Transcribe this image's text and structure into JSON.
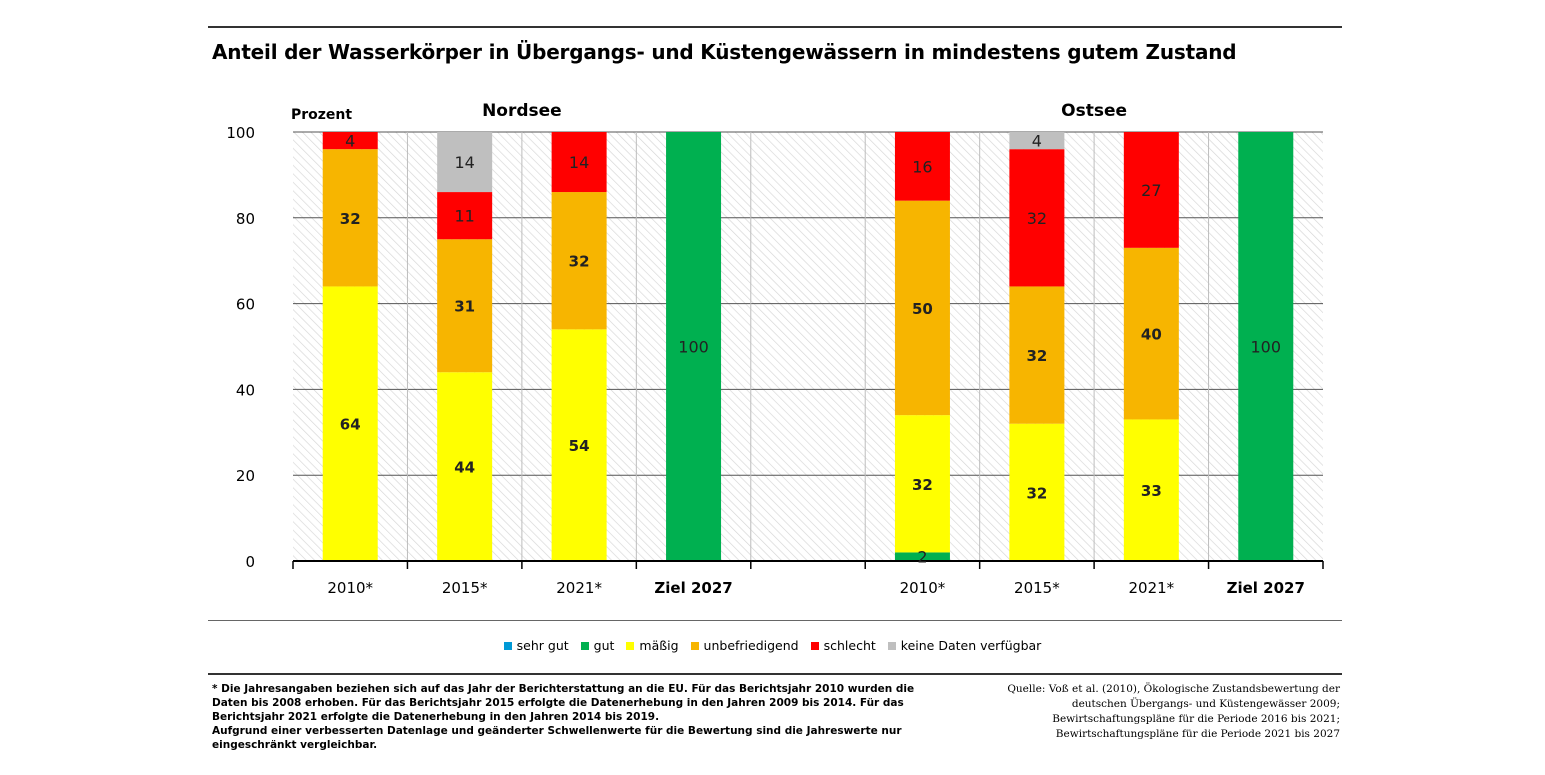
{
  "title": "Anteil der Wasserkörper in Übergangs- und Küstengewässern in mindestens gutem Zustand",
  "chart_data": {
    "type": "bar",
    "stacked": true,
    "ylabel": "Prozent",
    "ylim": [
      0,
      100
    ],
    "yticks": [
      0,
      20,
      40,
      60,
      80,
      100
    ],
    "grid": true,
    "legend_position": "bottom",
    "groups": [
      {
        "name": "Nordsee",
        "categories": [
          "2010*",
          "2015*",
          "2021*",
          "Ziel 2027"
        ],
        "series": [
          {
            "name": "sehr gut",
            "values": [
              0,
              0,
              0,
              0
            ]
          },
          {
            "name": "gut",
            "values": [
              0,
              0,
              0,
              100
            ]
          },
          {
            "name": "mäßig",
            "values": [
              64,
              44,
              54,
              0
            ]
          },
          {
            "name": "unbefriedigend",
            "values": [
              32,
              31,
              32,
              0
            ]
          },
          {
            "name": "schlecht",
            "values": [
              4,
              11,
              14,
              0
            ]
          },
          {
            "name": "keine Daten verfügbar",
            "values": [
              0,
              14,
              0,
              0
            ]
          }
        ]
      },
      {
        "name": "Ostsee",
        "categories": [
          "2010*",
          "2015*",
          "2021*",
          "Ziel 2027"
        ],
        "series": [
          {
            "name": "sehr gut",
            "values": [
              0,
              0,
              0,
              0
            ]
          },
          {
            "name": "gut",
            "values": [
              2,
              0,
              0,
              100
            ]
          },
          {
            "name": "mäßig",
            "values": [
              32,
              32,
              33,
              0
            ]
          },
          {
            "name": "unbefriedigend",
            "values": [
              50,
              32,
              40,
              0
            ]
          },
          {
            "name": "schlecht",
            "values": [
              16,
              32,
              27,
              0
            ]
          },
          {
            "name": "keine Daten verfügbar",
            "values": [
              0,
              4,
              0,
              0
            ]
          }
        ]
      }
    ],
    "colors": {
      "sehr gut": "#0099d6",
      "gut": "#00b050",
      "mäßig": "#ffff00",
      "unbefriedigend": "#f7b500",
      "schlecht": "#ff0000",
      "keine Daten verfügbar": "#bfbfbf"
    },
    "bold_label_series": [
      "mäßig",
      "unbefriedigend"
    ]
  },
  "legend": [
    {
      "label": "sehr gut",
      "color": "#0099d6"
    },
    {
      "label": "gut",
      "color": "#00b050"
    },
    {
      "label": "mäßig",
      "color": "#ffff00"
    },
    {
      "label": "unbefriedigend",
      "color": "#f7b500"
    },
    {
      "label": "schlecht",
      "color": "#ff0000"
    },
    {
      "label": "keine Daten verfügbar",
      "color": "#bfbfbf"
    }
  ],
  "footnote": {
    "line1": " * Die Jahresangaben beziehen sich auf das Jahr der Berichterstattung an die EU. Für das Berichtsjahr 2010 wurden die Daten bis 2008 erhoben. Für das Berichtsjahr 2015 erfolgte die Datenerhebung in den Jahren 2009 bis 2014. Für das Berichtsjahr 2021 erfolgte die Datenerhebung in den Jahren 2014 bis 2019.",
    "line2": "Aufgrund einer verbesserten Datenlage und geänderter Schwellenwerte für die Bewertung sind die Jahreswerte nur eingeschränkt vergleichbar."
  },
  "source": {
    "line1": "Quelle: Voß et al. (2010), Ökologische Zustandsbewertung der",
    "line2": "deutschen Übergangs- und Küstengewässer 2009;",
    "line3": "Bewirtschaftungspläne für die Periode 2016 bis 2021;",
    "line4": "Bewirtschaftungspläne für die Periode 2021 bis 2027"
  }
}
